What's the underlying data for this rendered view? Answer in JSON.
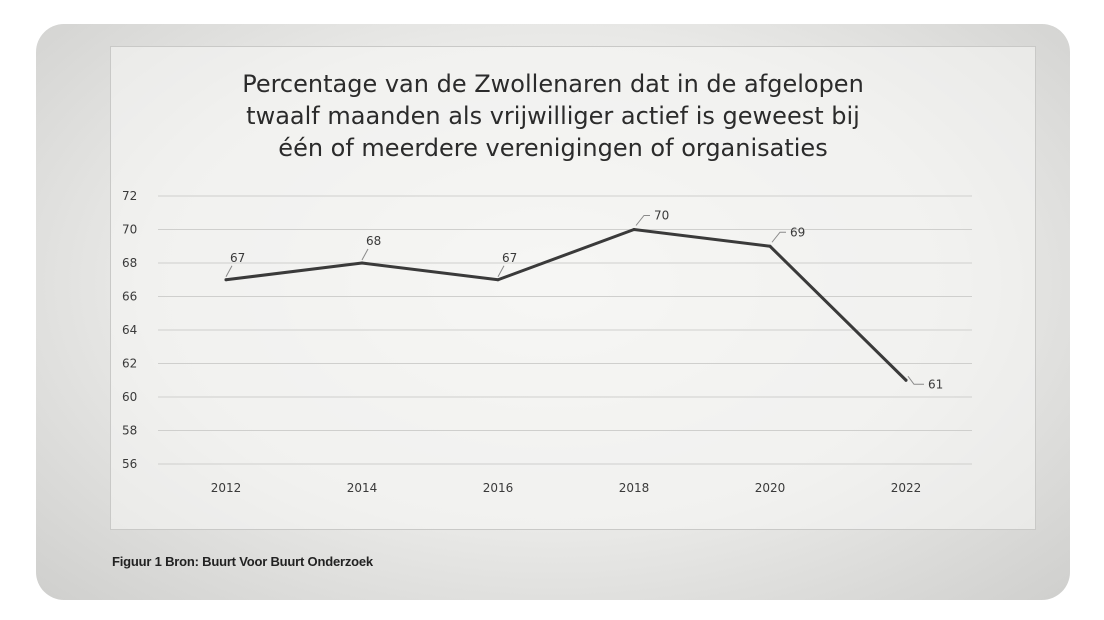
{
  "chart_data": {
    "type": "line",
    "title_lines": [
      "Percentage van de Zwollenaren dat in de afgelopen",
      "twaalf maanden als vrijwilliger actief is geweest bij",
      "één of meerdere verenigingen of organisaties"
    ],
    "categories": [
      "2012",
      "2014",
      "2016",
      "2018",
      "2020",
      "2022"
    ],
    "values": [
      67,
      68,
      67,
      70,
      69,
      61
    ],
    "data_labels": [
      "67",
      "68",
      "67",
      "70",
      "69",
      "61"
    ],
    "ylim": [
      56,
      72
    ],
    "yticks": [
      "72",
      "70",
      "68",
      "66",
      "64",
      "62",
      "60",
      "58",
      "56"
    ],
    "grid": true,
    "xlabel": "",
    "ylabel": "",
    "line_color": "#3a3a3a"
  },
  "caption": "Figuur 1 Bron: Buurt Voor Buurt Onderzoek"
}
